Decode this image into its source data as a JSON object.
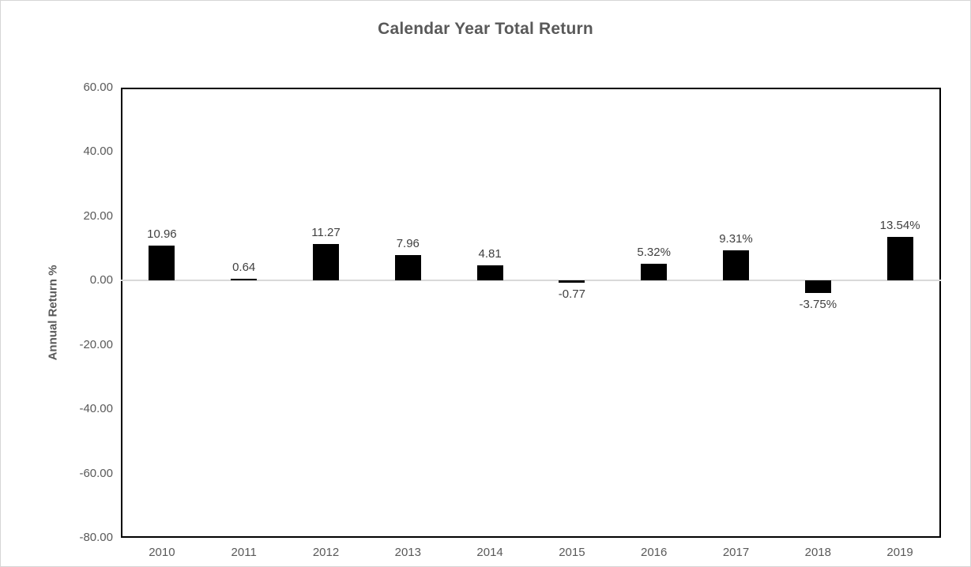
{
  "chart_data": {
    "type": "bar",
    "title": "Calendar Year Total Return",
    "xlabel": "",
    "ylabel": "Annual Return %",
    "categories": [
      "2010",
      "2011",
      "2012",
      "2013",
      "2014",
      "2015",
      "2016",
      "2017",
      "2018",
      "2019"
    ],
    "values": [
      10.96,
      0.64,
      11.27,
      7.96,
      4.81,
      -0.77,
      5.32,
      9.31,
      -3.75,
      13.54
    ],
    "value_labels": [
      "10.96",
      "0.64",
      "11.27",
      "7.96",
      "4.81",
      "-0.77",
      "5.32%",
      "9.31%",
      "-3.75%",
      "13.54%"
    ],
    "ylim": [
      -80,
      60
    ],
    "yticks": [
      60,
      40,
      20,
      0,
      -20,
      -40,
      -60,
      -80
    ],
    "ytick_labels": [
      "60.00",
      "40.00",
      "20.00",
      "0.00",
      "-20.00",
      "-40.00",
      "-60.00",
      "-80.00"
    ],
    "legend": "none",
    "grid": "zero-line-only",
    "colors": {
      "bar": "#000000",
      "title_text": "#595959",
      "axis_text": "#595959",
      "data_label_text": "#404040",
      "plot_border": "#000000",
      "zero_line": "#d9d9d9",
      "background": "#ffffff",
      "outer_border": "#d6d6d6"
    }
  }
}
